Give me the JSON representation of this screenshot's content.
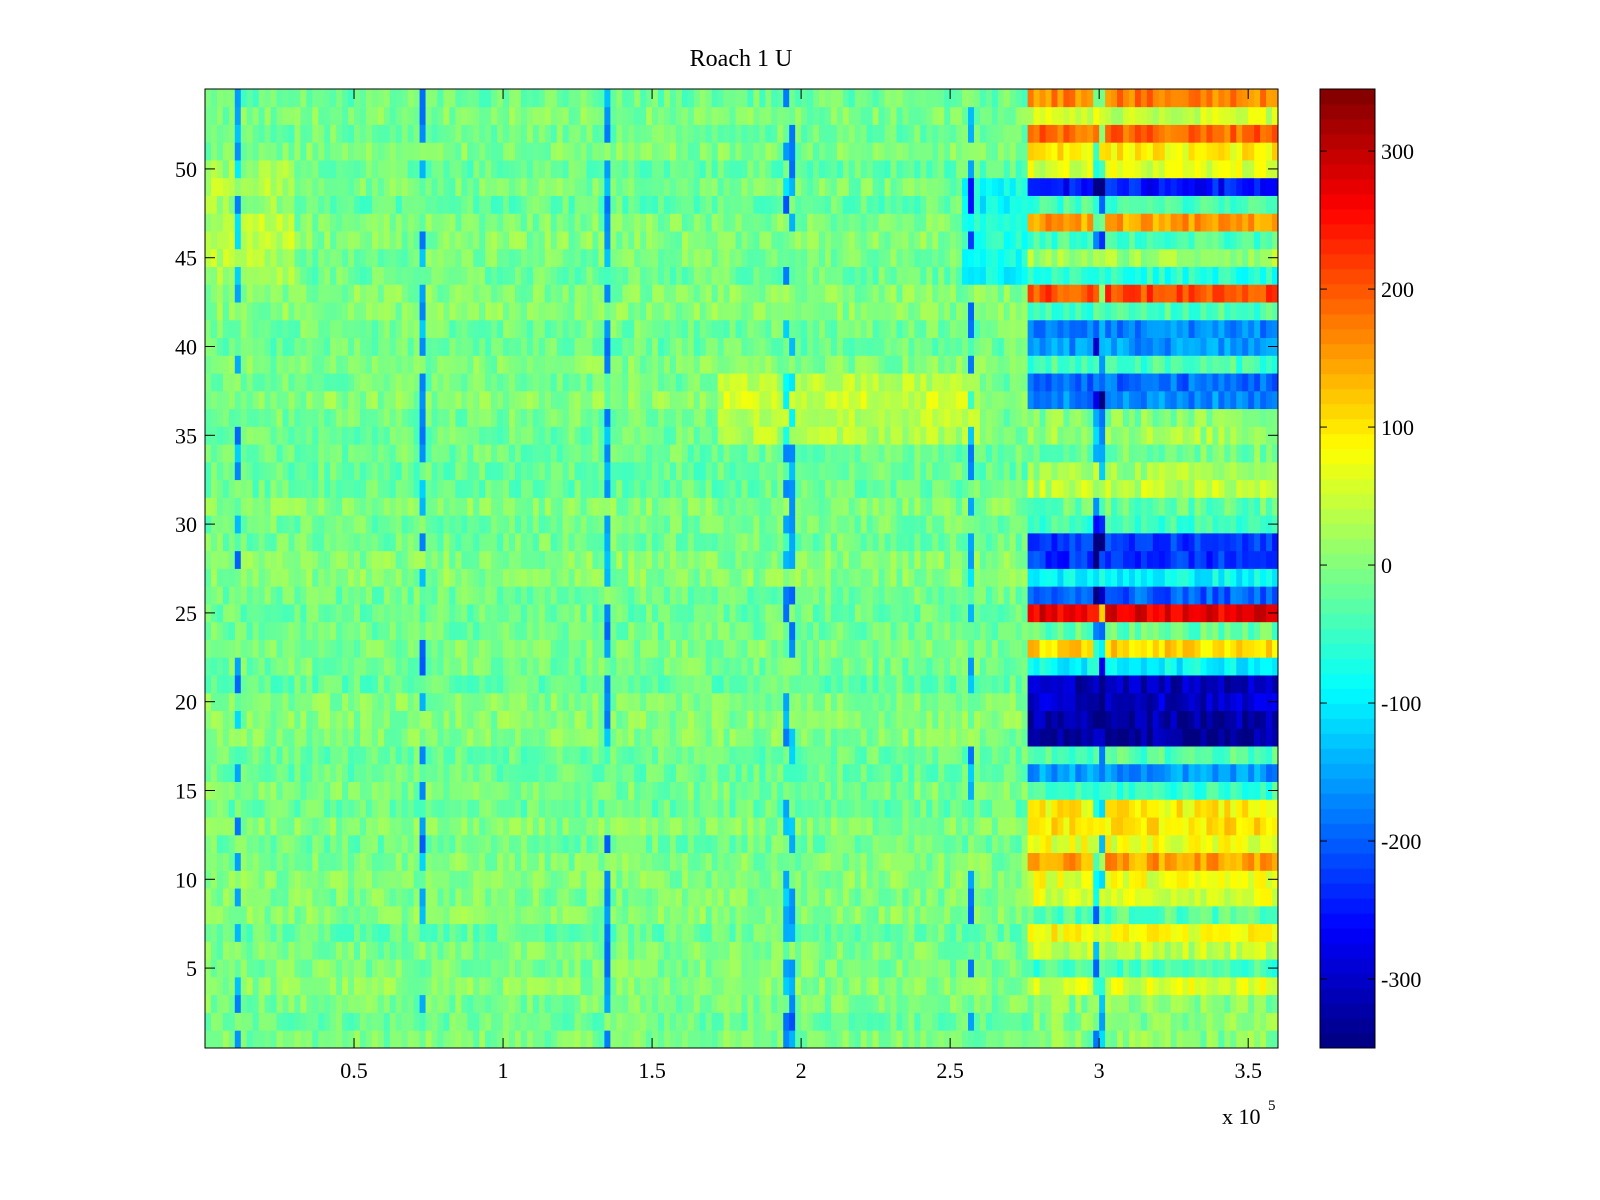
{
  "chart_data": {
    "type": "heatmap",
    "title": "Roach 1 U",
    "xlabel": "",
    "ylabel": "",
    "x_multiplier_label": "x 10",
    "x_multiplier_exponent": "5",
    "xlim": [
      0,
      3.6
    ],
    "ylim": [
      0.5,
      54.5
    ],
    "xticks": [
      {
        "value": 0.5,
        "label": "0.5"
      },
      {
        "value": 1,
        "label": "1"
      },
      {
        "value": 1.5,
        "label": "1.5"
      },
      {
        "value": 2,
        "label": "2"
      },
      {
        "value": 2.5,
        "label": "2.5"
      },
      {
        "value": 3,
        "label": "3"
      },
      {
        "value": 3.5,
        "label": "3.5"
      }
    ],
    "yticks": [
      {
        "value": 5,
        "label": "5"
      },
      {
        "value": 10,
        "label": "10"
      },
      {
        "value": 15,
        "label": "15"
      },
      {
        "value": 20,
        "label": "20"
      },
      {
        "value": 25,
        "label": "25"
      },
      {
        "value": 30,
        "label": "30"
      },
      {
        "value": 35,
        "label": "35"
      },
      {
        "value": 40,
        "label": "40"
      },
      {
        "value": 45,
        "label": "45"
      },
      {
        "value": 50,
        "label": "50"
      }
    ],
    "colormap": "jet",
    "clim": [
      -350,
      345
    ],
    "colorbar_ticks": [
      {
        "value": 300,
        "label": "300"
      },
      {
        "value": 200,
        "label": "200"
      },
      {
        "value": 100,
        "label": "100"
      },
      {
        "value": 0,
        "label": "0"
      },
      {
        "value": -100,
        "label": "-100"
      },
      {
        "value": -200,
        "label": "-200"
      },
      {
        "value": -300,
        "label": "-300"
      }
    ],
    "rows": 54,
    "late_segment_start_x": 2.77,
    "late_segment_row_means": {
      "4": 60,
      "5": -40,
      "6": 40,
      "7": 80,
      "8": -30,
      "9": 60,
      "10": 70,
      "11": 150,
      "12": 70,
      "13": 100,
      "14": 90,
      "15": -50,
      "16": -160,
      "17": -30,
      "18": -330,
      "19": -320,
      "20": -300,
      "21": -310,
      "22": -90,
      "23": 110,
      "24": -20,
      "25": 270,
      "26": -200,
      "27": -90,
      "28": -230,
      "29": -230,
      "30": -50,
      "31": -20,
      "32": 40,
      "33": 20,
      "34": -10,
      "35": 20,
      "37": -170,
      "38": -190,
      "39": -40,
      "40": -160,
      "41": -170,
      "42": -40,
      "43": 210,
      "44": -60,
      "45": 20,
      "46": -40,
      "47": 150,
      "48": -40,
      "49": -250,
      "50": 60,
      "51": 90,
      "52": 190,
      "53": 50,
      "54": 170
    },
    "vertical_artifact_lines_x": [
      0.11,
      0.73,
      1.35,
      1.96,
      2.57,
      3.0
    ]
  }
}
